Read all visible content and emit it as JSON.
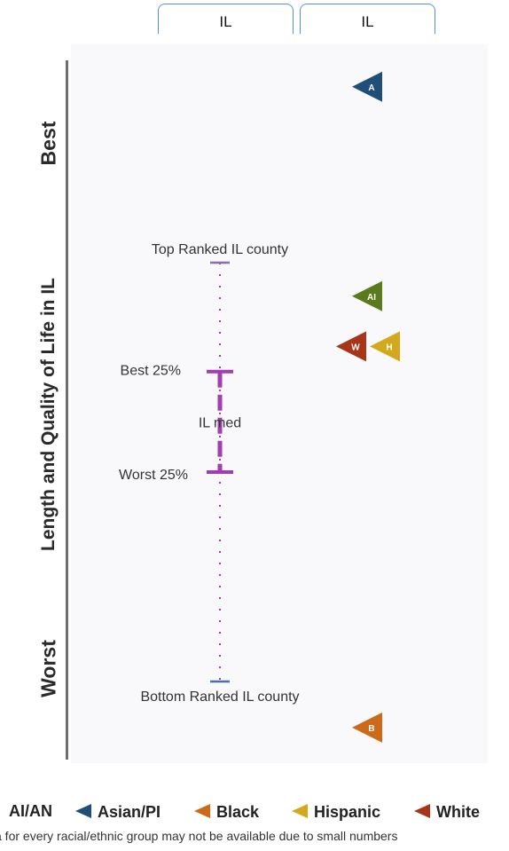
{
  "header": {
    "tabs": [
      {
        "label": "IL"
      },
      {
        "label": "IL"
      }
    ]
  },
  "y_axis": {
    "label": "Length and Quality of Life in IL",
    "top_label": "Best",
    "bottom_label": "Worst"
  },
  "chart_data": {
    "type": "scatter",
    "y_orientation": "higher is better",
    "reference": {
      "top_label": "Top Ranked IL county",
      "best25_label": "Best 25%",
      "median_label": "IL med",
      "worst25_label": "Worst 25%",
      "bottom_label": "Bottom Ranked IL county",
      "top": 1.0,
      "best25": 0.74,
      "median": 0.62,
      "worst25": 0.5,
      "bottom": 0.0,
      "color": "#a23fb0"
    },
    "groups": [
      {
        "code": "A",
        "name": "Asian/PI",
        "score": 1.42,
        "color": "#1f4e79"
      },
      {
        "code": "AI",
        "name": "AI/AN",
        "score": 0.92,
        "color": "#5a7a1e"
      },
      {
        "code": "H",
        "name": "Hispanic",
        "score": 0.8,
        "color": "#d4a81c"
      },
      {
        "code": "W",
        "name": "White",
        "score": 0.8,
        "color": "#a8341a"
      },
      {
        "code": "B",
        "name": "Black",
        "score": -0.11,
        "color": "#cc6a1a"
      }
    ]
  },
  "legend": {
    "items": [
      {
        "label": "AI/AN",
        "color": "#5a7a1e"
      },
      {
        "label": "Asian/PI",
        "color": "#1f4e79"
      },
      {
        "label": "Black",
        "color": "#cc6a1a"
      },
      {
        "label": "Hispanic",
        "color": "#d4a81c"
      },
      {
        "label": "White",
        "color": "#a8341a"
      }
    ]
  },
  "footnote": "a for every racial/ethnic group may not be available due to small numbers"
}
